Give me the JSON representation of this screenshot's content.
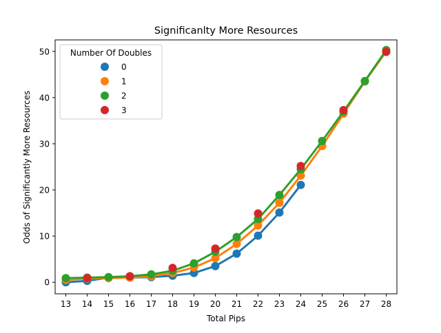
{
  "chart_data": {
    "type": "line",
    "title": "Significanlty More Resources",
    "xlabel": "Total Pips",
    "ylabel": "Odds of Significantly More Resources",
    "categories": [
      "13",
      "14",
      "15",
      "16",
      "17",
      "18",
      "19",
      "20",
      "21",
      "22",
      "23",
      "24",
      "25",
      "26",
      "27",
      "28"
    ],
    "ylim": [
      -2.5,
      52.5
    ],
    "yticks": [
      0,
      10,
      20,
      30,
      40,
      50
    ],
    "grid": false,
    "legend": {
      "title": "Number Of Doubles",
      "placement": "top-left"
    },
    "series": [
      {
        "name": "0",
        "color": "#1f77b4",
        "values": [
          0.0,
          0.3,
          1.0,
          1.0,
          1.1,
          1.4,
          2.0,
          3.5,
          6.2,
          10.1,
          15.1,
          21.1,
          null,
          null,
          null,
          null
        ]
      },
      {
        "name": "1",
        "color": "#ff7f0e",
        "values": [
          0.5,
          0.8,
          0.9,
          1.0,
          1.3,
          2.0,
          3.2,
          5.2,
          8.3,
          12.3,
          17.2,
          23.1,
          29.5,
          36.5,
          43.5,
          50.0
        ]
      },
      {
        "name": "2",
        "color": "#2ca02c",
        "values": [
          0.9,
          1.0,
          1.1,
          1.3,
          1.7,
          2.5,
          4.1,
          6.6,
          9.8,
          13.7,
          18.9,
          24.5,
          30.6,
          37.0,
          43.6,
          50.3
        ]
      },
      {
        "name": "3",
        "color": "#d62728",
        "values": [
          null,
          0.9,
          null,
          1.3,
          null,
          3.1,
          null,
          7.3,
          null,
          14.9,
          null,
          25.2,
          null,
          37.3,
          null,
          49.9
        ]
      }
    ]
  }
}
